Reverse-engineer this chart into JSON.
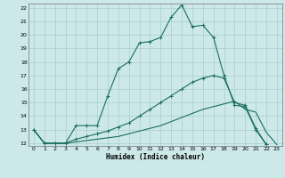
{
  "xlabel": "Humidex (Indice chaleur)",
  "bg_color": "#cce8e8",
  "grid_color": "#aacece",
  "line_color": "#1a6e60",
  "xlim": [
    -0.5,
    23.5
  ],
  "ylim": [
    11.8,
    22.3
  ],
  "xticks": [
    0,
    1,
    2,
    3,
    4,
    5,
    6,
    7,
    8,
    9,
    10,
    11,
    12,
    13,
    14,
    15,
    16,
    17,
    18,
    19,
    20,
    21,
    22,
    23
  ],
  "yticks": [
    12,
    13,
    14,
    15,
    16,
    17,
    18,
    19,
    20,
    21,
    22
  ],
  "line1_x": [
    0,
    1,
    2,
    3,
    4,
    5,
    6,
    7,
    8,
    9,
    10,
    11,
    12,
    13,
    14,
    15,
    16,
    17,
    18,
    19,
    20,
    21,
    22,
    23
  ],
  "line1_y": [
    13,
    12,
    12,
    12,
    13.3,
    13.3,
    13.3,
    15.5,
    17.5,
    18.0,
    19.4,
    19.5,
    19.8,
    21.3,
    22.2,
    20.6,
    20.7,
    19.8,
    17.0,
    14.8,
    14.7,
    13.0,
    11.9,
    null
  ],
  "line2_x": [
    0,
    1,
    2,
    3,
    4,
    5,
    6,
    7,
    8,
    9,
    10,
    11,
    12,
    13,
    14,
    15,
    16,
    17,
    18,
    19,
    20,
    21,
    22,
    23
  ],
  "line2_y": [
    13,
    12,
    12,
    12,
    12.3,
    12.5,
    12.7,
    12.9,
    13.2,
    13.5,
    14.0,
    14.5,
    15.0,
    15.5,
    16.0,
    16.5,
    16.8,
    17.0,
    16.8,
    15.0,
    14.8,
    13.1,
    11.9,
    null
  ],
  "line3_x": [
    0,
    1,
    2,
    3,
    4,
    5,
    6,
    7,
    8,
    9,
    10,
    11,
    12,
    13,
    14,
    15,
    16,
    17,
    18,
    19,
    20,
    21,
    22,
    23
  ],
  "line3_y": [
    13,
    12,
    12,
    12,
    12.1,
    12.2,
    12.3,
    12.4,
    12.5,
    12.7,
    12.9,
    13.1,
    13.3,
    13.6,
    13.9,
    14.2,
    14.5,
    14.7,
    14.9,
    15.1,
    14.5,
    14.3,
    12.8,
    11.9
  ]
}
